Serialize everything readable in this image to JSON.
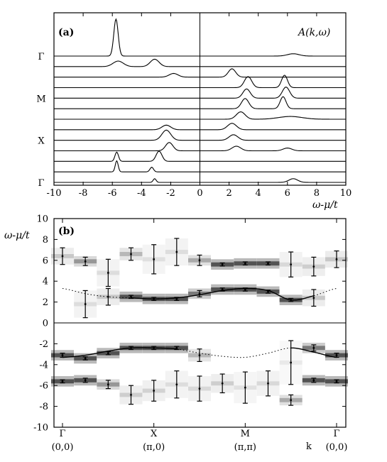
{
  "chart_data": [
    {
      "type": "line",
      "panel_label": "(a)",
      "annotation": "A(k,ω)",
      "xlabel": "ω-μ/t",
      "xlim": [
        -10,
        10
      ],
      "x_ticks": [
        "-10",
        "-8",
        "-6",
        "-4",
        "-2",
        "0",
        "2",
        "4",
        "6",
        "8",
        "10"
      ],
      "y_labels": [
        "Γ",
        "X",
        "M",
        "Γ"
      ],
      "y_label_curve_index": [
        0,
        4,
        8,
        12
      ],
      "curves": [
        {
          "peaks": [
            [
              -3.1,
              0.1,
              0.8
            ],
            [
              6.4,
              0.3,
              0.8
            ]
          ]
        },
        {
          "peaks": [
            [
              -5.7,
              0.1,
              2.4
            ],
            [
              -3.3,
              0.12,
              1.0
            ]
          ]
        },
        {
          "peaks": [
            [
              -5.7,
              0.12,
              2.0
            ],
            [
              -2.8,
              0.2,
              2.2
            ]
          ]
        },
        {
          "peaks": [
            [
              -2.1,
              0.25,
              1.8
            ],
            [
              2.5,
              0.3,
              1.0
            ],
            [
              6.0,
              0.3,
              0.6
            ]
          ]
        },
        {
          "peaks": [
            [
              -2.3,
              0.3,
              2.2
            ],
            [
              2.3,
              0.3,
              1.2
            ]
          ]
        },
        {
          "peaks": [
            [
              -2.3,
              0.3,
              1.0
            ],
            [
              2.2,
              0.3,
              1.4
            ]
          ]
        },
        {
          "peaks": [
            [
              2.8,
              0.3,
              1.6
            ],
            [
              6.2,
              0.8,
              0.6
            ]
          ]
        },
        {
          "peaks": [
            [
              3.1,
              0.25,
              2.2
            ],
            [
              5.7,
              0.2,
              2.6
            ]
          ]
        },
        {
          "peaks": [
            [
              3.2,
              0.25,
              2.0
            ],
            [
              5.9,
              0.25,
              2.4
            ]
          ]
        },
        {
          "peaks": [
            [
              3.3,
              0.25,
              2.4
            ],
            [
              5.8,
              0.2,
              2.7
            ]
          ]
        },
        {
          "peaks": [
            [
              -1.8,
              0.3,
              0.8
            ],
            [
              2.2,
              0.25,
              1.8
            ]
          ]
        },
        {
          "peaks": [
            [
              -5.6,
              0.35,
              1.2
            ],
            [
              -3.1,
              0.3,
              1.6
            ]
          ]
        },
        {
          "peaks": [
            [
              -5.75,
              0.15,
              8.0
            ],
            [
              6.4,
              0.4,
              0.5
            ]
          ]
        }
      ]
    },
    {
      "type": "scatter",
      "panel_label": "(b)",
      "xlabel": "k",
      "ylabel": "ω-μ/t",
      "ylim": [
        -10,
        10
      ],
      "y_ticks": [
        "-10",
        "-8",
        "-6",
        "-4",
        "-2",
        "0",
        "2",
        "4",
        "6",
        "8",
        "10"
      ],
      "k_labels": [
        {
          "name": "Γ",
          "coord": "(0,0)"
        },
        {
          "name": "X",
          "coord": "(π,0)"
        },
        {
          "name": "M",
          "coord": "(π,π)"
        },
        {
          "name": "Γ",
          "coord": "(0,0)"
        }
      ],
      "series": [
        {
          "role": "upper band",
          "points": [
            [
              0,
              6.4,
              0.8
            ],
            [
              1,
              5.9,
              0.4
            ],
            [
              2,
              4.8,
              1.3
            ],
            [
              3,
              6.6,
              0.6
            ],
            [
              4,
              6.1,
              1.4
            ],
            [
              5,
              6.8,
              1.3
            ],
            [
              6,
              6.0,
              0.5
            ],
            [
              7,
              5.6,
              0.15
            ],
            [
              8,
              5.7,
              0.15
            ],
            [
              9,
              5.7,
              0.15
            ],
            [
              10,
              5.6,
              1.2
            ],
            [
              11,
              5.4,
              0.9
            ],
            [
              12,
              6.1,
              0.8
            ],
            [
              1,
              1.8,
              1.3
            ],
            [
              2,
              2.5,
              0.8
            ],
            [
              3,
              2.5,
              0.15
            ],
            [
              4,
              2.3,
              0.15
            ],
            [
              5,
              2.3,
              0.15
            ],
            [
              6,
              2.8,
              0.3
            ],
            [
              7,
              3.2,
              0.15
            ],
            [
              8,
              3.2,
              0.15
            ],
            [
              9,
              3.0,
              0.15
            ],
            [
              10,
              2.2,
              0.15
            ],
            [
              11,
              2.4,
              0.8
            ]
          ]
        },
        {
          "role": "lower band",
          "points": [
            [
              0,
              -3.1,
              0.2
            ],
            [
              1,
              -3.4,
              0.15
            ],
            [
              2,
              -2.9,
              0.15
            ],
            [
              3,
              -2.4,
              0.15
            ],
            [
              4,
              -2.4,
              0.15
            ],
            [
              5,
              -2.4,
              0.15
            ],
            [
              6,
              -3.1,
              0.6
            ],
            [
              10,
              -3.8,
              2.1
            ],
            [
              11,
              -2.4,
              0.3
            ],
            [
              12,
              -3.1,
              0.2
            ],
            [
              0,
              -5.6,
              0.15
            ],
            [
              1,
              -5.5,
              0.2
            ],
            [
              2,
              -5.9,
              0.4
            ],
            [
              3,
              -6.9,
              0.9
            ],
            [
              4,
              -6.5,
              1.0
            ],
            [
              5,
              -5.9,
              1.3
            ],
            [
              6,
              -6.3,
              1.2
            ],
            [
              7,
              -5.8,
              0.9
            ],
            [
              8,
              -6.2,
              1.5
            ],
            [
              9,
              -5.8,
              1.2
            ],
            [
              10,
              -7.4,
              0.5
            ],
            [
              11,
              -5.5,
              0.2
            ],
            [
              12,
              -5.6,
              0.15
            ]
          ]
        }
      ],
      "dispersion": {
        "k": [
          0,
          1,
          2,
          3,
          4,
          5,
          6,
          7,
          8,
          9,
          10,
          11,
          12
        ],
        "upper": [
          3.3,
          2.8,
          2.5,
          2.4,
          2.3,
          2.4,
          2.7,
          3.1,
          3.3,
          3.1,
          2.2,
          2.6,
          3.3
        ],
        "lower": [
          -3.3,
          -3.1,
          -2.7,
          -2.4,
          -2.4,
          -2.5,
          -2.9,
          -3.2,
          -3.3,
          -2.9,
          -2.4,
          -2.8,
          -3.3
        ],
        "solid_upper_range": [
          3,
          11
        ],
        "solid_lower_range": [
          0,
          5
        ],
        "solid_lower_range_2": [
          10,
          12
        ]
      }
    }
  ]
}
